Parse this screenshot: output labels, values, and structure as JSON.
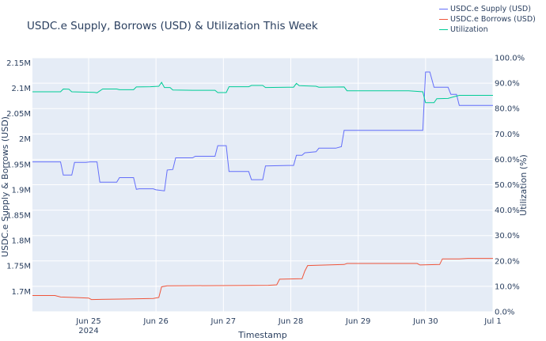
{
  "chart_data": {
    "type": "line",
    "title": "USDC.e Supply, Borrows (USD) & Utilization This Week",
    "xlabel": "Timestamp",
    "ylabel": "USDC.e Supply & Borrows (USD)",
    "y2label": "Utilization (%)",
    "x_range": [
      "2024-06-24T04:00",
      "2024-07-01T00:00"
    ],
    "x_ticks": [
      {
        "t": "2024-06-25T00:00",
        "label": "Jun 25",
        "sub": "2024"
      },
      {
        "t": "2024-06-26T00:00",
        "label": "Jun 26"
      },
      {
        "t": "2024-06-27T00:00",
        "label": "Jun 27"
      },
      {
        "t": "2024-06-28T00:00",
        "label": "Jun 28"
      },
      {
        "t": "2024-06-29T00:00",
        "label": "Jun 29"
      },
      {
        "t": "2024-06-30T00:00",
        "label": "Jun 30"
      },
      {
        "t": "2024-07-01T00:00",
        "label": "Jul 1"
      }
    ],
    "ylim": [
      1660000,
      2160000
    ],
    "y_ticks": [
      {
        "v": 1700000,
        "label": "1.7M"
      },
      {
        "v": 1750000,
        "label": "1.75M"
      },
      {
        "v": 1800000,
        "label": "1.8M"
      },
      {
        "v": 1850000,
        "label": "1.85M"
      },
      {
        "v": 1900000,
        "label": "1.9M"
      },
      {
        "v": 1950000,
        "label": "1.95M"
      },
      {
        "v": 2000000,
        "label": "2M"
      },
      {
        "v": 2050000,
        "label": "2.05M"
      },
      {
        "v": 2100000,
        "label": "2.1M"
      },
      {
        "v": 2150000,
        "label": "2.15M"
      }
    ],
    "y2lim": [
      0,
      100
    ],
    "y2_ticks": [
      {
        "v": 0,
        "label": "0.0%"
      },
      {
        "v": 10,
        "label": "10.0%"
      },
      {
        "v": 20,
        "label": "20.0%"
      },
      {
        "v": 30,
        "label": "30.0%"
      },
      {
        "v": 40,
        "label": "40.0%"
      },
      {
        "v": 50,
        "label": "50.0%"
      },
      {
        "v": 60,
        "label": "60.0%"
      },
      {
        "v": 70,
        "label": "70.0%"
      },
      {
        "v": 80,
        "label": "80.0%"
      },
      {
        "v": 90,
        "label": "90.0%"
      },
      {
        "v": 100,
        "label": "100.0%"
      }
    ],
    "legend_position": "top-right",
    "series": [
      {
        "name": "USDC.e Supply (USD)",
        "color": "#636efa",
        "axis": "left",
        "points": [
          [
            "2024-06-24T04:00",
            1955000
          ],
          [
            "2024-06-24T14:00",
            1955000
          ],
          [
            "2024-06-24T15:00",
            1929000
          ],
          [
            "2024-06-24T18:00",
            1929000
          ],
          [
            "2024-06-24T19:00",
            1954000
          ],
          [
            "2024-06-24T23:00",
            1954000
          ],
          [
            "2024-06-25T00:30",
            1955000
          ],
          [
            "2024-06-25T03:00",
            1955000
          ],
          [
            "2024-06-25T04:00",
            1915000
          ],
          [
            "2024-06-25T10:00",
            1915000
          ],
          [
            "2024-06-25T11:00",
            1924000
          ],
          [
            "2024-06-25T16:00",
            1924000
          ],
          [
            "2024-06-25T17:00",
            1901000
          ],
          [
            "2024-06-25T18:00",
            1902000
          ],
          [
            "2024-06-25T23:00",
            1902000
          ],
          [
            "2024-06-26T00:00",
            1900000
          ],
          [
            "2024-06-26T03:00",
            1898000
          ],
          [
            "2024-06-26T04:00",
            1939000
          ],
          [
            "2024-06-26T06:00",
            1940000
          ],
          [
            "2024-06-26T07:00",
            1963000
          ],
          [
            "2024-06-26T13:00",
            1963000
          ],
          [
            "2024-06-26T14:00",
            1966000
          ],
          [
            "2024-06-26T21:00",
            1966000
          ],
          [
            "2024-06-26T22:00",
            1987000
          ],
          [
            "2024-06-27T01:00",
            1987000
          ],
          [
            "2024-06-27T02:00",
            1936000
          ],
          [
            "2024-06-27T09:00",
            1936000
          ],
          [
            "2024-06-27T10:00",
            1920000
          ],
          [
            "2024-06-27T14:00",
            1920000
          ],
          [
            "2024-06-27T15:00",
            1947000
          ],
          [
            "2024-06-27T23:00",
            1948000
          ],
          [
            "2024-06-28T01:00",
            1948000
          ],
          [
            "2024-06-28T02:00",
            1968000
          ],
          [
            "2024-06-28T04:00",
            1968000
          ],
          [
            "2024-06-28T05:00",
            1973000
          ],
          [
            "2024-06-28T09:00",
            1975000
          ],
          [
            "2024-06-28T10:00",
            1982000
          ],
          [
            "2024-06-28T16:00",
            1982000
          ],
          [
            "2024-06-28T18:00",
            1985000
          ],
          [
            "2024-06-28T19:00",
            2017000
          ],
          [
            "2024-06-29T23:00",
            2017000
          ],
          [
            "2024-06-30T00:00",
            2132000
          ],
          [
            "2024-06-30T01:30",
            2132000
          ],
          [
            "2024-06-30T03:00",
            2102000
          ],
          [
            "2024-06-30T08:00",
            2102000
          ],
          [
            "2024-06-30T09:00",
            2088000
          ],
          [
            "2024-06-30T11:00",
            2088000
          ],
          [
            "2024-06-30T12:00",
            2066000
          ],
          [
            "2024-07-01T00:00",
            2066000
          ]
        ]
      },
      {
        "name": "USDC.e Borrows (USD)",
        "color": "#ef553b",
        "axis": "left",
        "points": [
          [
            "2024-06-24T04:00",
            1692000
          ],
          [
            "2024-06-24T12:00",
            1692000
          ],
          [
            "2024-06-24T14:00",
            1689000
          ],
          [
            "2024-06-24T19:00",
            1688000
          ],
          [
            "2024-06-25T00:00",
            1687000
          ],
          [
            "2024-06-25T01:00",
            1684000
          ],
          [
            "2024-06-25T14:00",
            1685000
          ],
          [
            "2024-06-25T23:00",
            1686000
          ],
          [
            "2024-06-26T01:00",
            1688000
          ],
          [
            "2024-06-26T02:00",
            1709000
          ],
          [
            "2024-06-26T04:00",
            1711000
          ],
          [
            "2024-06-27T16:00",
            1712000
          ],
          [
            "2024-06-27T19:00",
            1713000
          ],
          [
            "2024-06-27T20:00",
            1724000
          ],
          [
            "2024-06-28T04:00",
            1725000
          ],
          [
            "2024-06-28T05:00",
            1740000
          ],
          [
            "2024-06-28T06:00",
            1751000
          ],
          [
            "2024-06-28T19:00",
            1753000
          ],
          [
            "2024-06-28T20:00",
            1755000
          ],
          [
            "2024-06-29T21:00",
            1755000
          ],
          [
            "2024-06-29T22:00",
            1752000
          ],
          [
            "2024-06-30T05:00",
            1753000
          ],
          [
            "2024-06-30T06:00",
            1764000
          ],
          [
            "2024-06-30T12:00",
            1764000
          ],
          [
            "2024-06-30T15:00",
            1765000
          ],
          [
            "2024-07-01T00:00",
            1765000
          ]
        ]
      },
      {
        "name": "Utilization",
        "color": "#00cc96",
        "axis": "right",
        "points": [
          [
            "2024-06-24T04:00",
            86.6
          ],
          [
            "2024-06-24T14:00",
            86.6
          ],
          [
            "2024-06-24T15:00",
            87.7
          ],
          [
            "2024-06-24T17:00",
            87.6
          ],
          [
            "2024-06-24T18:00",
            86.6
          ],
          [
            "2024-06-25T02:00",
            86.4
          ],
          [
            "2024-06-25T03:00",
            86.2
          ],
          [
            "2024-06-25T05:00",
            87.7
          ],
          [
            "2024-06-25T10:00",
            87.7
          ],
          [
            "2024-06-25T11:00",
            87.4
          ],
          [
            "2024-06-25T16:00",
            87.4
          ],
          [
            "2024-06-25T17:00",
            88.5
          ],
          [
            "2024-06-25T22:00",
            88.6
          ],
          [
            "2024-06-26T01:00",
            88.8
          ],
          [
            "2024-06-26T02:00",
            90.3
          ],
          [
            "2024-06-26T03:00",
            88.3
          ],
          [
            "2024-06-26T05:00",
            88.3
          ],
          [
            "2024-06-26T06:00",
            87.3
          ],
          [
            "2024-06-26T13:00",
            87.2
          ],
          [
            "2024-06-26T21:00",
            87.2
          ],
          [
            "2024-06-26T22:00",
            86.3
          ],
          [
            "2024-06-27T01:00",
            86.3
          ],
          [
            "2024-06-27T02:00",
            88.6
          ],
          [
            "2024-06-27T09:00",
            88.6
          ],
          [
            "2024-06-27T10:00",
            89.1
          ],
          [
            "2024-06-27T14:00",
            89.1
          ],
          [
            "2024-06-27T15:00",
            88.3
          ],
          [
            "2024-06-27T23:00",
            88.4
          ],
          [
            "2024-06-28T01:00",
            88.4
          ],
          [
            "2024-06-28T02:00",
            89.9
          ],
          [
            "2024-06-28T03:00",
            89.0
          ],
          [
            "2024-06-28T09:00",
            88.8
          ],
          [
            "2024-06-28T10:00",
            88.4
          ],
          [
            "2024-06-28T19:00",
            88.5
          ],
          [
            "2024-06-28T20:00",
            87.0
          ],
          [
            "2024-06-29T18:00",
            87.0
          ],
          [
            "2024-06-29T23:00",
            86.6
          ],
          [
            "2024-06-30T00:00",
            82.3
          ],
          [
            "2024-06-30T03:00",
            82.3
          ],
          [
            "2024-06-30T04:00",
            83.9
          ],
          [
            "2024-06-30T08:00",
            84.0
          ],
          [
            "2024-06-30T10:00",
            84.6
          ],
          [
            "2024-06-30T12:00",
            85.2
          ],
          [
            "2024-07-01T00:00",
            85.2
          ]
        ]
      }
    ]
  }
}
